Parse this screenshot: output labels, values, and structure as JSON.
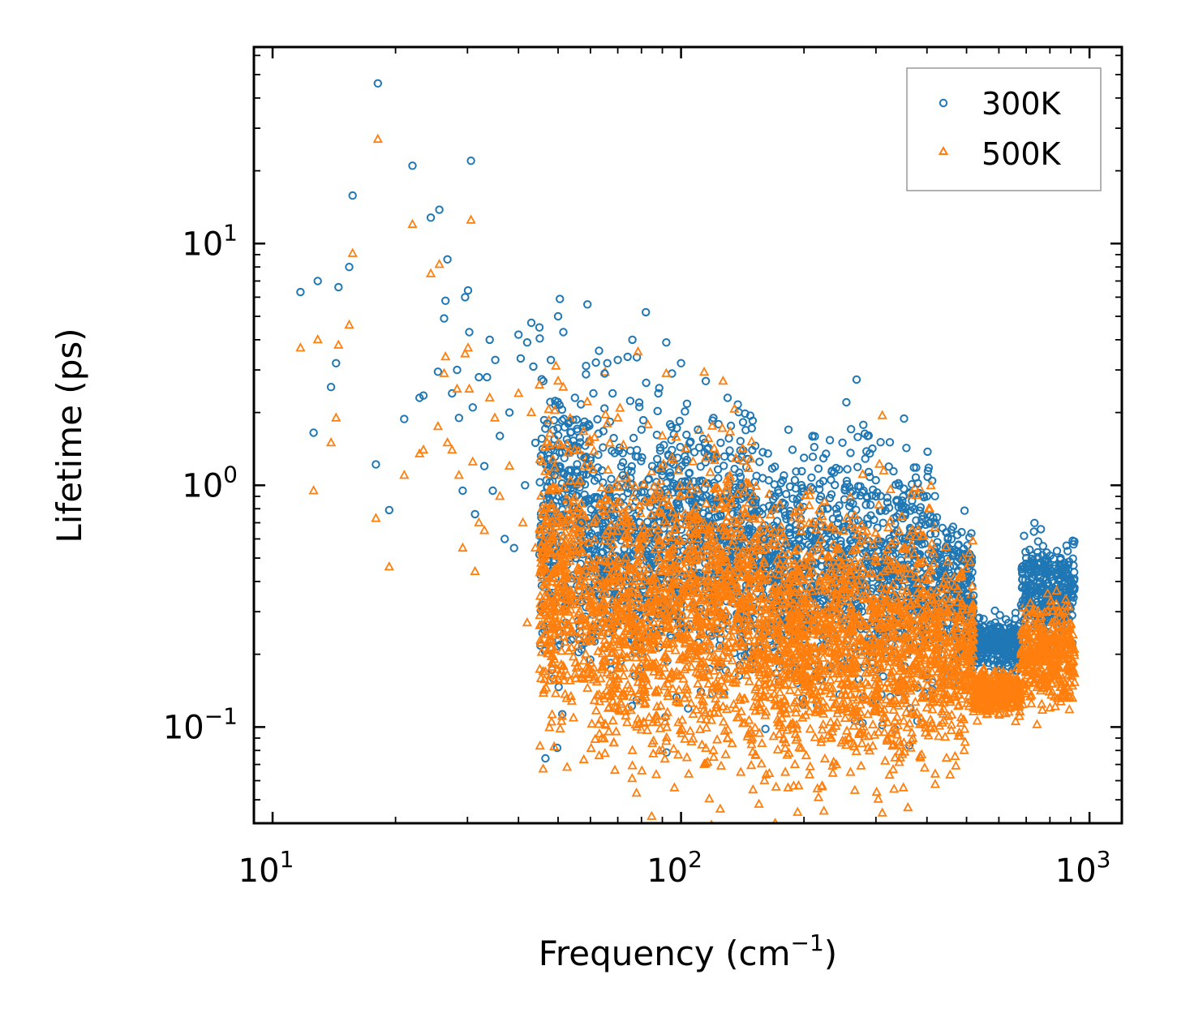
{
  "chart_data": {
    "type": "scatter",
    "title": "",
    "xlabel": "Frequency (cm",
    "xlabel_sup": "−1",
    "xlabel_end": ")",
    "ylabel": "Lifetime (ps)",
    "xscale": "log",
    "yscale": "log",
    "xlim": [
      9,
      1200
    ],
    "ylim": [
      0.04,
      65
    ],
    "x_ticks": [
      {
        "value": 10,
        "base": "10",
        "exp": "1"
      },
      {
        "value": 100,
        "base": "10",
        "exp": "2"
      },
      {
        "value": 1000,
        "base": "10",
        "exp": "3"
      }
    ],
    "y_ticks": [
      {
        "value": 0.1,
        "base": "10",
        "exp": "−1"
      },
      {
        "value": 1,
        "base": "10",
        "exp": "0"
      },
      {
        "value": 10,
        "base": "10",
        "exp": "1"
      }
    ],
    "legend_position": "top-right",
    "series": [
      {
        "name": "300K",
        "marker": "circle",
        "color": "#1f77b4",
        "points": [
          [
            11.7,
            6.3
          ],
          [
            12.6,
            1.65
          ],
          [
            12.9,
            7.0
          ],
          [
            13.9,
            2.55
          ],
          [
            14.3,
            3.2
          ],
          [
            14.5,
            6.6
          ],
          [
            15.4,
            8.0
          ],
          [
            15.7,
            15.8
          ],
          [
            17.9,
            1.22
          ],
          [
            18.1,
            46
          ],
          [
            19.3,
            0.79
          ],
          [
            21.0,
            1.88
          ],
          [
            22.0,
            21.0
          ],
          [
            22.9,
            2.3
          ],
          [
            23.4,
            2.35
          ],
          [
            24.4,
            12.8
          ],
          [
            25.4,
            2.95
          ],
          [
            25.6,
            13.8
          ],
          [
            26.3,
            4.9
          ],
          [
            26.5,
            5.8
          ],
          [
            26.8,
            8.6
          ],
          [
            27.5,
            2.4
          ],
          [
            28.3,
            3.0
          ],
          [
            28.6,
            1.9
          ],
          [
            29.2,
            0.95
          ],
          [
            29.6,
            6.0
          ],
          [
            30.1,
            6.4
          ],
          [
            30.3,
            4.3
          ],
          [
            30.6,
            22
          ],
          [
            30.9,
            2.1
          ],
          [
            31.3,
            0.76
          ],
          [
            32.0,
            2.8
          ],
          [
            33.0,
            1.2
          ],
          [
            33.5,
            2.8
          ],
          [
            34.0,
            4.0
          ],
          [
            34.6,
            0.95
          ],
          [
            35.1,
            3.3
          ],
          [
            36.0,
            1.6
          ],
          [
            37.0,
            0.6
          ],
          [
            38.0,
            2.0
          ],
          [
            39.0,
            0.55
          ],
          [
            40.0,
            4.2
          ],
          [
            40.5,
            3.35
          ],
          [
            41.5,
            1.0
          ],
          [
            42.0,
            3.9
          ],
          [
            43.0,
            4.7
          ],
          [
            43.5,
            3.1
          ],
          [
            44.0,
            1.5
          ],
          [
            45.0,
            4.5
          ],
          [
            46.0,
            2.7
          ],
          [
            47.0,
            1.8
          ],
          [
            48.0,
            3.3
          ],
          [
            49.0,
            1.1
          ],
          [
            50.0,
            5.0
          ],
          [
            50.5,
            5.9
          ],
          [
            51.5,
            4.3
          ],
          [
            52.0,
            0.85
          ],
          [
            53.0,
            1.8
          ],
          [
            55.0,
            2.3
          ],
          [
            57.0,
            0.7
          ],
          [
            58.0,
            1.3
          ],
          [
            59.0,
            5.6
          ],
          [
            61.0,
            2.4
          ],
          [
            63.0,
            3.6
          ],
          [
            65.0,
            2.9
          ],
          [
            66.0,
            3.2
          ],
          [
            68.0,
            2.4
          ],
          [
            70.0,
            3.3
          ],
          [
            72.0,
            1.1
          ],
          [
            74.0,
            3.4
          ],
          [
            76.0,
            4.0
          ],
          [
            78.0,
            1.4
          ],
          [
            80.0,
            1.7
          ],
          [
            82.0,
            5.2
          ],
          [
            85.0,
            1.2
          ],
          [
            88.0,
            2.4
          ],
          [
            90.0,
            1.1
          ],
          [
            92.0,
            3.9
          ],
          [
            95.0,
            2.9
          ],
          [
            98.0,
            1.3
          ],
          [
            100.0,
            3.2
          ],
          [
            105.0,
            1.5
          ],
          [
            110.0,
            1.7
          ],
          [
            115.0,
            2.7
          ],
          [
            120.0,
            1.9
          ],
          [
            125.0,
            1.5
          ],
          [
            130.0,
            2.3
          ],
          [
            140.0,
            1.0
          ],
          [
            150.0,
            0.85
          ],
          [
            160.0,
            0.6
          ],
          [
            170.0,
            0.9
          ],
          [
            180.0,
            0.75
          ],
          [
            190.0,
            1.05
          ],
          [
            200.0,
            1.3
          ],
          [
            210.0,
            1.6
          ],
          [
            220.0,
            0.9
          ],
          [
            240.0,
            0.8
          ],
          [
            260.0,
            0.85
          ],
          [
            280.0,
            0.95
          ],
          [
            300.0,
            0.9
          ],
          [
            320.0,
            0.85
          ],
          [
            350.0,
            0.9
          ],
          [
            380.0,
            1.02
          ],
          [
            400.0,
            0.9
          ],
          [
            420.0,
            0.7
          ],
          [
            450.0,
            0.6
          ],
          [
            480.0,
            0.5
          ],
          [
            520.0,
            0.35
          ],
          [
            560.0,
            0.25
          ],
          [
            600.0,
            0.26
          ],
          [
            640.0,
            0.24
          ],
          [
            680.0,
            0.32
          ],
          [
            700.0,
            0.5
          ],
          [
            750.0,
            0.44
          ],
          [
            800.0,
            0.45
          ],
          [
            850.0,
            0.5
          ],
          [
            900.0,
            0.38
          ]
        ]
      },
      {
        "name": "500K",
        "marker": "triangle",
        "color": "#ff7f0e",
        "points": [
          [
            11.7,
            3.7
          ],
          [
            12.6,
            0.95
          ],
          [
            12.9,
            4.0
          ],
          [
            13.9,
            1.5
          ],
          [
            14.3,
            1.9
          ],
          [
            14.5,
            3.8
          ],
          [
            15.4,
            4.6
          ],
          [
            15.7,
            9.1
          ],
          [
            17.9,
            0.73
          ],
          [
            18.1,
            27
          ],
          [
            19.3,
            0.46
          ],
          [
            21.0,
            1.1
          ],
          [
            22.0,
            12.0
          ],
          [
            22.9,
            1.35
          ],
          [
            23.4,
            1.4
          ],
          [
            24.4,
            7.5
          ],
          [
            25.4,
            1.75
          ],
          [
            25.6,
            8.2
          ],
          [
            26.3,
            2.9
          ],
          [
            26.5,
            3.4
          ],
          [
            26.8,
            1.5
          ],
          [
            27.5,
            1.4
          ],
          [
            28.3,
            2.5
          ],
          [
            28.6,
            1.1
          ],
          [
            29.2,
            0.55
          ],
          [
            29.6,
            3.5
          ],
          [
            30.1,
            3.7
          ],
          [
            30.3,
            2.5
          ],
          [
            30.6,
            12.5
          ],
          [
            30.9,
            1.25
          ],
          [
            31.3,
            0.44
          ],
          [
            32.0,
            0.7
          ],
          [
            33.0,
            0.65
          ],
          [
            34.0,
            2.3
          ],
          [
            35.0,
            1.9
          ],
          [
            36.0,
            0.9
          ],
          [
            38.0,
            1.2
          ],
          [
            40.0,
            2.4
          ],
          [
            41.0,
            0.7
          ],
          [
            42.0,
            0.27
          ],
          [
            43.0,
            2.0
          ],
          [
            44.0,
            0.55
          ],
          [
            45.0,
            2.6
          ],
          [
            46.0,
            0.45
          ],
          [
            47.0,
            1.5
          ],
          [
            48.0,
            0.8
          ],
          [
            49.0,
            0.3
          ],
          [
            50.0,
            2.7
          ],
          [
            52.0,
            0.5
          ],
          [
            54.0,
            0.35
          ],
          [
            55.0,
            1.4
          ],
          [
            57.0,
            0.16
          ],
          [
            58.0,
            1.2
          ],
          [
            60.0,
            0.35
          ],
          [
            62.0,
            0.3
          ],
          [
            64.0,
            0.09
          ],
          [
            66.0,
            1.8
          ],
          [
            68.0,
            0.15
          ],
          [
            70.0,
            1.9
          ],
          [
            72.0,
            0.2
          ],
          [
            74.0,
            0.12
          ],
          [
            76.0,
            0.08
          ],
          [
            78.0,
            0.1
          ],
          [
            80.0,
            0.2
          ],
          [
            82.0,
            0.6
          ],
          [
            85.0,
            0.18
          ],
          [
            88.0,
            0.35
          ],
          [
            90.0,
            1.6
          ],
          [
            92.0,
            2.9
          ],
          [
            95.0,
            1.3
          ],
          [
            98.0,
            0.3
          ],
          [
            100.0,
            0.9
          ],
          [
            105.0,
            1.0
          ],
          [
            110.0,
            0.6
          ],
          [
            115.0,
            1.3
          ],
          [
            120.0,
            0.08
          ],
          [
            130.0,
            0.09
          ],
          [
            140.0,
            0.065
          ],
          [
            150.0,
            0.055
          ],
          [
            160.0,
            0.06
          ],
          [
            170.0,
            0.04
          ],
          [
            180.0,
            0.065
          ],
          [
            190.0,
            0.07
          ],
          [
            200.0,
            0.15
          ],
          [
            210.0,
            0.7
          ],
          [
            220.0,
            0.6
          ],
          [
            240.0,
            0.07
          ],
          [
            260.0,
            0.065
          ],
          [
            280.0,
            0.1
          ],
          [
            300.0,
            0.12
          ],
          [
            320.0,
            0.09
          ],
          [
            350.0,
            0.13
          ],
          [
            380.0,
            0.25
          ],
          [
            400.0,
            0.12
          ],
          [
            420.0,
            0.13
          ],
          [
            450.0,
            0.15
          ],
          [
            500.0,
            0.2
          ],
          [
            520.0,
            0.12
          ],
          [
            560.0,
            0.13
          ],
          [
            600.0,
            0.14
          ],
          [
            640.0,
            0.14
          ],
          [
            680.0,
            0.2
          ],
          [
            700.0,
            0.3
          ],
          [
            750.0,
            0.18
          ],
          [
            800.0,
            0.12
          ],
          [
            850.0,
            0.2
          ],
          [
            900.0,
            0.22
          ]
        ],
        "dense_regions_note": "high density"
      }
    ]
  }
}
